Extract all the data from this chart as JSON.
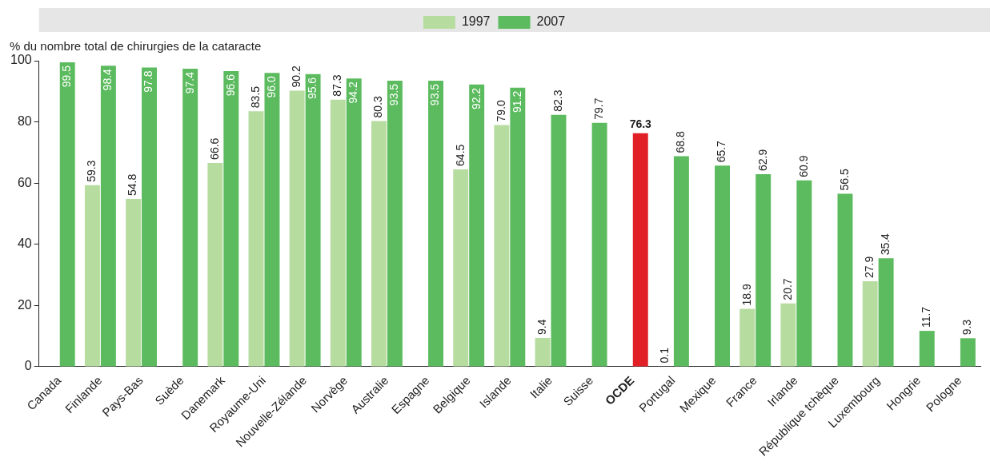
{
  "chart_data": {
    "type": "bar",
    "ylabel": "% du nombre total de chirurgies de la cataracte",
    "categories": [
      "Canada",
      "Finlande",
      "Pays-Bas",
      "Suède",
      "Danemark",
      "Royaume-Uni",
      "Nouvelle-Zélande",
      "Norvège",
      "Australie",
      "Espagne",
      "Belgique",
      "Islande",
      "Italie",
      "Suisse",
      "OCDE",
      "Portugal",
      "Mexique",
      "France",
      "Irlande",
      "République tchèque",
      "Luxembourg",
      "Hongrie",
      "Pologne"
    ],
    "series": [
      {
        "name": "1997",
        "color": "#b7dca0",
        "values": [
          null,
          59.3,
          54.8,
          null,
          66.6,
          83.5,
          90.2,
          87.3,
          80.3,
          null,
          64.5,
          79.0,
          9.4,
          null,
          null,
          0.1,
          null,
          18.9,
          20.7,
          null,
          27.9,
          null,
          null
        ],
        "value_labels": [
          null,
          "59.3",
          "54.8",
          null,
          "66.6",
          "83.5",
          "90.2",
          "87.3",
          "80.3",
          null,
          "64.5",
          "79.0",
          "9.4",
          null,
          null,
          "0.1",
          null,
          "18.9",
          "20.7",
          null,
          "27.9",
          null,
          null
        ]
      },
      {
        "name": "2007",
        "color": "#5cbb5e",
        "colors": [
          "#5cbb5e",
          "#5cbb5e",
          "#5cbb5e",
          "#5cbb5e",
          "#5cbb5e",
          "#5cbb5e",
          "#5cbb5e",
          "#5cbb5e",
          "#5cbb5e",
          "#5cbb5e",
          "#5cbb5e",
          "#5cbb5e",
          "#5cbb5e",
          "#5cbb5e",
          "#e01f26",
          "#5cbb5e",
          "#5cbb5e",
          "#5cbb5e",
          "#5cbb5e",
          "#5cbb5e",
          "#5cbb5e",
          "#5cbb5e",
          "#5cbb5e"
        ],
        "values": [
          99.5,
          98.4,
          97.8,
          97.4,
          96.6,
          96.0,
          95.6,
          94.2,
          93.5,
          93.5,
          92.2,
          91.2,
          82.3,
          79.7,
          76.3,
          68.8,
          65.7,
          62.9,
          60.9,
          56.5,
          35.4,
          11.7,
          9.3
        ],
        "value_labels": [
          "99.5",
          "98.4",
          "97.8",
          "97.4",
          "96.6",
          "96.0",
          "95.6",
          "94.2",
          "93.5",
          "93.5",
          "92.2",
          "91.2",
          "82.3",
          "79.7",
          "76.3",
          "68.8",
          "65.7",
          "62.9",
          "60.9",
          "56.5",
          "35.4",
          "11.7",
          "9.3"
        ]
      }
    ],
    "ylim": [
      0,
      100
    ],
    "yticks": [
      0,
      20,
      40,
      60,
      80,
      100
    ],
    "grid": false,
    "legend": "top"
  }
}
